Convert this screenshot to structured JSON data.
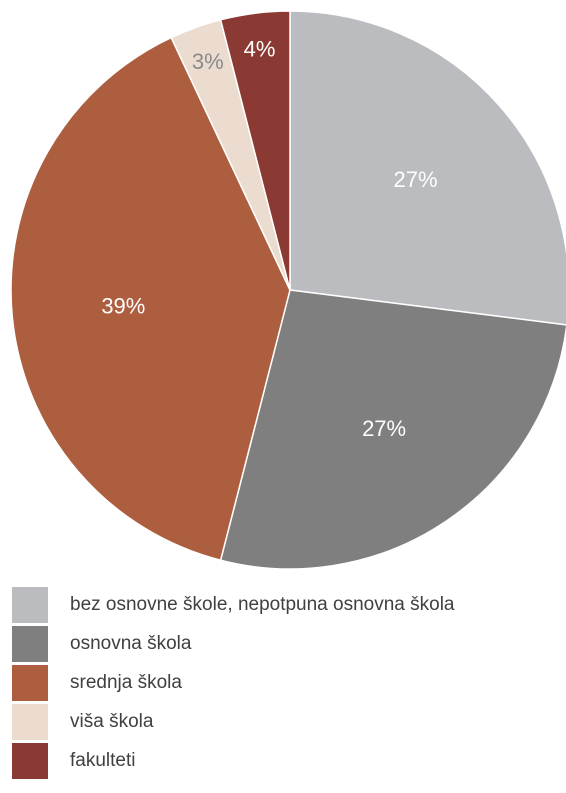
{
  "chart_data": {
    "type": "pie",
    "categories": [
      "bez osnovne škole, nepotpuna osnovna škola",
      "osnovna škola",
      "srednja škola",
      "viša škola",
      "fakulteti"
    ],
    "values": [
      27,
      27,
      39,
      3,
      4
    ],
    "labels": [
      "27%",
      "27%",
      "39%",
      "3%",
      "4%"
    ],
    "colors": [
      "#bbbcbf",
      "#7f7f7f",
      "#ad5e3f",
      "#ecdccf",
      "#8b3a33"
    ],
    "label_colors": [
      "#ffffff",
      "#ffffff",
      "#ffffff",
      "#8a8a8a",
      "#ffffff"
    ],
    "start_angle_deg": 0,
    "direction": "clockwise",
    "legend_position": "bottom"
  }
}
